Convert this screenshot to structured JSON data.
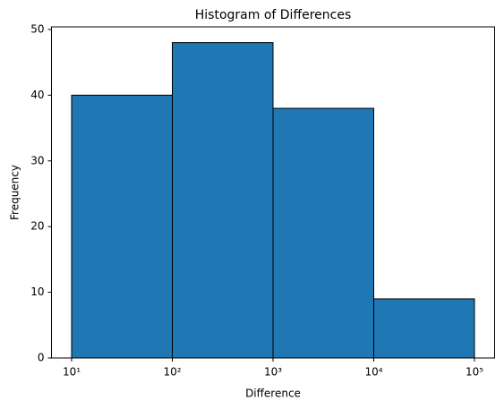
{
  "chart_data": {
    "type": "histogram",
    "title": "Histogram of Differences",
    "x_label": "Difference",
    "y_label": "Frequency",
    "bins": [
      10,
      100,
      1000,
      10000,
      100000
    ],
    "values": [
      40,
      48,
      38,
      9
    ],
    "color": "#1f77b4",
    "edgecolor": "#000000",
    "xscale": "log",
    "xlim": [
      6.31,
      158489
    ],
    "xticks": [
      {
        "value": 10,
        "label": "10¹"
      },
      {
        "value": 100,
        "label": "10²"
      },
      {
        "value": 1000,
        "label": "10³"
      },
      {
        "value": 10000,
        "label": "10⁴"
      },
      {
        "value": 100000,
        "label": "10⁵"
      }
    ],
    "ylim": [
      0,
      50.4
    ],
    "yticks": [
      0,
      10,
      20,
      30,
      40,
      50
    ],
    "grid": false
  }
}
